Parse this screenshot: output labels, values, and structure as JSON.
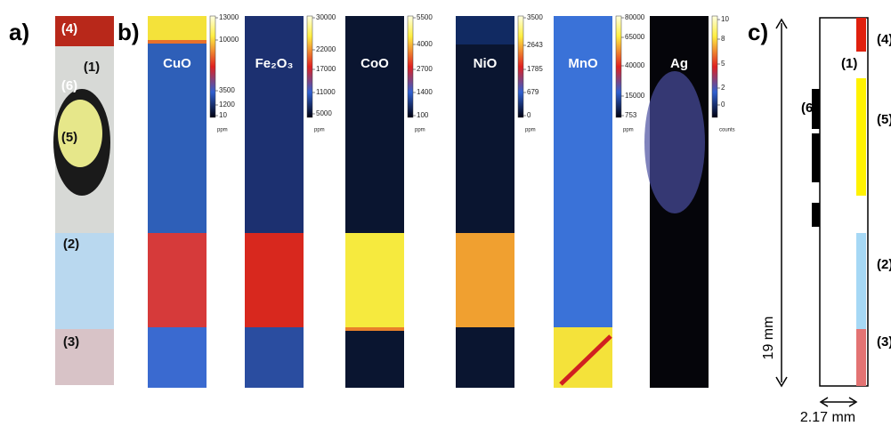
{
  "panel_a": {
    "label": "a)",
    "regions": [
      "(4)",
      "(1)",
      "(6)",
      "(5)",
      "(2)",
      "(3)"
    ]
  },
  "panel_b": {
    "label": "b)",
    "maps": [
      {
        "name": "CuO",
        "unit": "ppm",
        "scale": [
          13000,
          10000,
          3500,
          1200,
          10
        ]
      },
      {
        "name": "Fe₂O₃",
        "unit": "ppm",
        "scale": [
          30000,
          22000,
          17000,
          11000,
          5000
        ]
      },
      {
        "name": "CoO",
        "unit": "ppm",
        "scale": [
          5500,
          4000,
          2700,
          1400,
          100
        ]
      },
      {
        "name": "NiO",
        "unit": "ppm",
        "scale": [
          3500,
          2643,
          1785,
          679,
          0
        ]
      },
      {
        "name": "MnO",
        "unit": "ppm",
        "scale": [
          80000,
          65000,
          40000,
          15000,
          753
        ]
      },
      {
        "name": "Ag",
        "unit": "counts",
        "scale": [
          10,
          8,
          5,
          2,
          0
        ]
      }
    ]
  },
  "panel_c": {
    "label": "c)",
    "regions": [
      "(4)",
      "(1)",
      "(6)",
      "(5)",
      "(2)",
      "(3)"
    ],
    "height": "19 mm",
    "width": "2.17 mm"
  }
}
